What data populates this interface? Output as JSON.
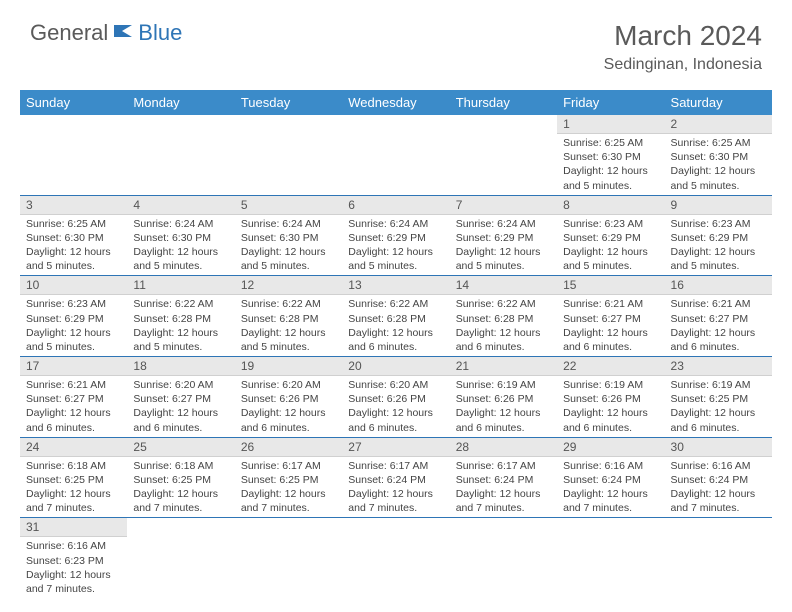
{
  "logo": {
    "part1": "General",
    "part2": "Blue"
  },
  "title": "March 2024",
  "subtitle": "Sedinginan, Indonesia",
  "colors": {
    "header_bg": "#3b8bc9",
    "header_text": "#ffffff",
    "daynum_bg": "#e8e8e8",
    "border": "#2e75b6",
    "logo_gray": "#5a5a5a",
    "logo_blue": "#2e75b6"
  },
  "day_headers": [
    "Sunday",
    "Monday",
    "Tuesday",
    "Wednesday",
    "Thursday",
    "Friday",
    "Saturday"
  ],
  "weeks": [
    [
      null,
      null,
      null,
      null,
      null,
      {
        "n": "1",
        "sr": "6:25 AM",
        "ss": "6:30 PM",
        "dl": "12 hours and 5 minutes."
      },
      {
        "n": "2",
        "sr": "6:25 AM",
        "ss": "6:30 PM",
        "dl": "12 hours and 5 minutes."
      }
    ],
    [
      {
        "n": "3",
        "sr": "6:25 AM",
        "ss": "6:30 PM",
        "dl": "12 hours and 5 minutes."
      },
      {
        "n": "4",
        "sr": "6:24 AM",
        "ss": "6:30 PM",
        "dl": "12 hours and 5 minutes."
      },
      {
        "n": "5",
        "sr": "6:24 AM",
        "ss": "6:30 PM",
        "dl": "12 hours and 5 minutes."
      },
      {
        "n": "6",
        "sr": "6:24 AM",
        "ss": "6:29 PM",
        "dl": "12 hours and 5 minutes."
      },
      {
        "n": "7",
        "sr": "6:24 AM",
        "ss": "6:29 PM",
        "dl": "12 hours and 5 minutes."
      },
      {
        "n": "8",
        "sr": "6:23 AM",
        "ss": "6:29 PM",
        "dl": "12 hours and 5 minutes."
      },
      {
        "n": "9",
        "sr": "6:23 AM",
        "ss": "6:29 PM",
        "dl": "12 hours and 5 minutes."
      }
    ],
    [
      {
        "n": "10",
        "sr": "6:23 AM",
        "ss": "6:29 PM",
        "dl": "12 hours and 5 minutes."
      },
      {
        "n": "11",
        "sr": "6:22 AM",
        "ss": "6:28 PM",
        "dl": "12 hours and 5 minutes."
      },
      {
        "n": "12",
        "sr": "6:22 AM",
        "ss": "6:28 PM",
        "dl": "12 hours and 5 minutes."
      },
      {
        "n": "13",
        "sr": "6:22 AM",
        "ss": "6:28 PM",
        "dl": "12 hours and 6 minutes."
      },
      {
        "n": "14",
        "sr": "6:22 AM",
        "ss": "6:28 PM",
        "dl": "12 hours and 6 minutes."
      },
      {
        "n": "15",
        "sr": "6:21 AM",
        "ss": "6:27 PM",
        "dl": "12 hours and 6 minutes."
      },
      {
        "n": "16",
        "sr": "6:21 AM",
        "ss": "6:27 PM",
        "dl": "12 hours and 6 minutes."
      }
    ],
    [
      {
        "n": "17",
        "sr": "6:21 AM",
        "ss": "6:27 PM",
        "dl": "12 hours and 6 minutes."
      },
      {
        "n": "18",
        "sr": "6:20 AM",
        "ss": "6:27 PM",
        "dl": "12 hours and 6 minutes."
      },
      {
        "n": "19",
        "sr": "6:20 AM",
        "ss": "6:26 PM",
        "dl": "12 hours and 6 minutes."
      },
      {
        "n": "20",
        "sr": "6:20 AM",
        "ss": "6:26 PM",
        "dl": "12 hours and 6 minutes."
      },
      {
        "n": "21",
        "sr": "6:19 AM",
        "ss": "6:26 PM",
        "dl": "12 hours and 6 minutes."
      },
      {
        "n": "22",
        "sr": "6:19 AM",
        "ss": "6:26 PM",
        "dl": "12 hours and 6 minutes."
      },
      {
        "n": "23",
        "sr": "6:19 AM",
        "ss": "6:25 PM",
        "dl": "12 hours and 6 minutes."
      }
    ],
    [
      {
        "n": "24",
        "sr": "6:18 AM",
        "ss": "6:25 PM",
        "dl": "12 hours and 7 minutes."
      },
      {
        "n": "25",
        "sr": "6:18 AM",
        "ss": "6:25 PM",
        "dl": "12 hours and 7 minutes."
      },
      {
        "n": "26",
        "sr": "6:17 AM",
        "ss": "6:25 PM",
        "dl": "12 hours and 7 minutes."
      },
      {
        "n": "27",
        "sr": "6:17 AM",
        "ss": "6:24 PM",
        "dl": "12 hours and 7 minutes."
      },
      {
        "n": "28",
        "sr": "6:17 AM",
        "ss": "6:24 PM",
        "dl": "12 hours and 7 minutes."
      },
      {
        "n": "29",
        "sr": "6:16 AM",
        "ss": "6:24 PM",
        "dl": "12 hours and 7 minutes."
      },
      {
        "n": "30",
        "sr": "6:16 AM",
        "ss": "6:24 PM",
        "dl": "12 hours and 7 minutes."
      }
    ],
    [
      {
        "n": "31",
        "sr": "6:16 AM",
        "ss": "6:23 PM",
        "dl": "12 hours and 7 minutes."
      },
      null,
      null,
      null,
      null,
      null,
      null
    ]
  ]
}
